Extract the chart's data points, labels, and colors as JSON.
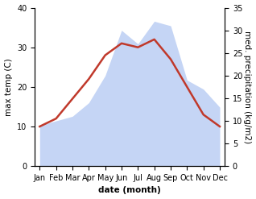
{
  "months": [
    "Jan",
    "Feb",
    "Mar",
    "Apr",
    "May",
    "Jun",
    "Jul",
    "Aug",
    "Sep",
    "Oct",
    "Nov",
    "Dec"
  ],
  "temp_max": [
    10,
    12,
    17,
    22,
    28,
    31,
    30,
    32,
    27,
    20,
    13,
    10
  ],
  "precipitation": [
    9,
    10,
    11,
    14,
    20,
    30,
    27,
    32,
    31,
    19,
    17,
    13
  ],
  "temp_color": "#c0392b",
  "precip_fill_color": "#c5d5f5",
  "temp_ylim": [
    0,
    40
  ],
  "precip_ylim": [
    0,
    35
  ],
  "xlabel": "date (month)",
  "ylabel_left": "max temp (C)",
  "ylabel_right": "med. precipitation (kg/m2)",
  "label_fontsize": 7.5,
  "tick_fontsize": 7
}
